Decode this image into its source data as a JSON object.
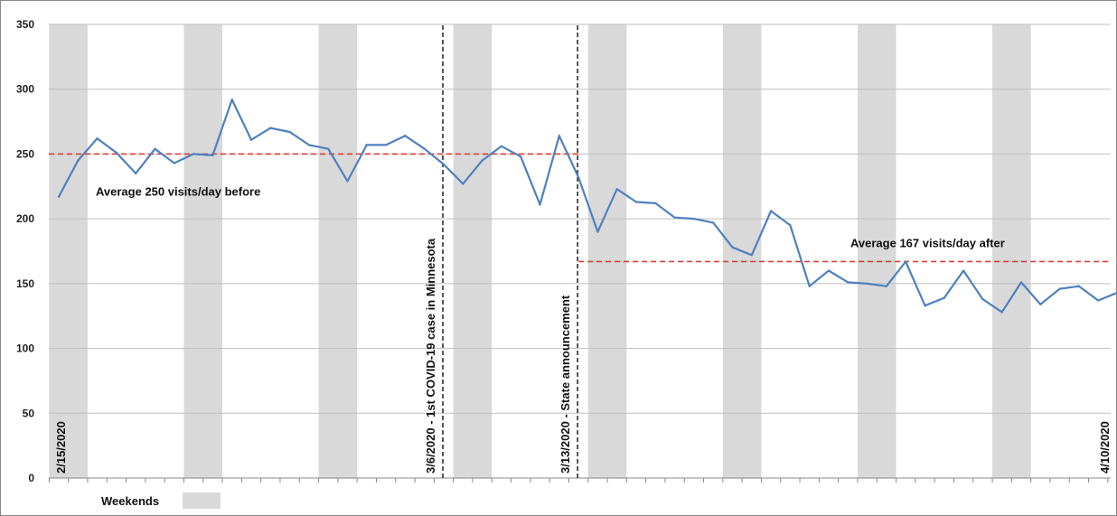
{
  "chart_data": {
    "type": "line",
    "ylim": [
      0,
      350
    ],
    "yticks": [
      0,
      50,
      100,
      150,
      200,
      250,
      300,
      350
    ],
    "grid": true,
    "series_color": "#4f81bd",
    "weekend_color": "#d9d9d9",
    "average_line_color": "#e03c31",
    "start_date_label": "2/15/2020",
    "end_date_label": "4/10/2020",
    "x": [
      "2/15/2020",
      "2/16/2020",
      "2/17/2020",
      "2/18/2020",
      "2/19/2020",
      "2/20/2020",
      "2/21/2020",
      "2/22/2020",
      "2/23/2020",
      "2/24/2020",
      "2/25/2020",
      "2/26/2020",
      "2/27/2020",
      "2/28/2020",
      "2/29/2020",
      "3/1/2020",
      "3/2/2020",
      "3/3/2020",
      "3/4/2020",
      "3/5/2020",
      "3/6/2020",
      "3/7/2020",
      "3/8/2020",
      "3/9/2020",
      "3/10/2020",
      "3/11/2020",
      "3/12/2020",
      "3/13/2020",
      "3/14/2020",
      "3/15/2020",
      "3/16/2020",
      "3/17/2020",
      "3/18/2020",
      "3/19/2020",
      "3/20/2020",
      "3/21/2020",
      "3/22/2020",
      "3/23/2020",
      "3/24/2020",
      "3/25/2020",
      "3/26/2020",
      "3/27/2020",
      "3/28/2020",
      "3/29/2020",
      "3/30/2020",
      "3/31/2020",
      "4/1/2020",
      "4/2/2020",
      "4/3/2020",
      "4/4/2020",
      "4/5/2020",
      "4/6/2020",
      "4/7/2020",
      "4/8/2020",
      "4/9/2020",
      "4/10/2020"
    ],
    "values": [
      217,
      245,
      262,
      251,
      235,
      254,
      243,
      250,
      249,
      292,
      261,
      270,
      267,
      257,
      254,
      229,
      257,
      257,
      264,
      254,
      242,
      227,
      245,
      256,
      248,
      211,
      264,
      232,
      190,
      223,
      213,
      212,
      201,
      200,
      197,
      178,
      172,
      206,
      195,
      148,
      160,
      151,
      150,
      148,
      167,
      133,
      139,
      160,
      138,
      128,
      151,
      134,
      146,
      148,
      137,
      143
    ],
    "weekends": [
      [
        "2/15/2020",
        "2/16/2020"
      ],
      [
        "2/22/2020",
        "2/23/2020"
      ],
      [
        "2/29/2020",
        "3/1/2020"
      ],
      [
        "3/7/2020",
        "3/8/2020"
      ],
      [
        "3/14/2020",
        "3/15/2020"
      ],
      [
        "3/21/2020",
        "3/22/2020"
      ],
      [
        "3/28/2020",
        "3/29/2020"
      ],
      [
        "4/4/2020",
        "4/5/2020"
      ]
    ],
    "events": [
      {
        "date": "3/6/2020",
        "label": "3/6/2020 - 1st COVID-19 case in Minnesota"
      },
      {
        "date": "3/13/2020",
        "label": "3/13/2020 - State announcement"
      }
    ],
    "averages": [
      {
        "value": 250,
        "from": "2/15/2020",
        "to": "3/13/2020",
        "label": "Average 250 visits/day before"
      },
      {
        "value": 167,
        "from": "3/13/2020",
        "to": "4/10/2020",
        "label": "Average 167 visits/day after"
      }
    ],
    "legend": {
      "label": "Weekends"
    }
  }
}
